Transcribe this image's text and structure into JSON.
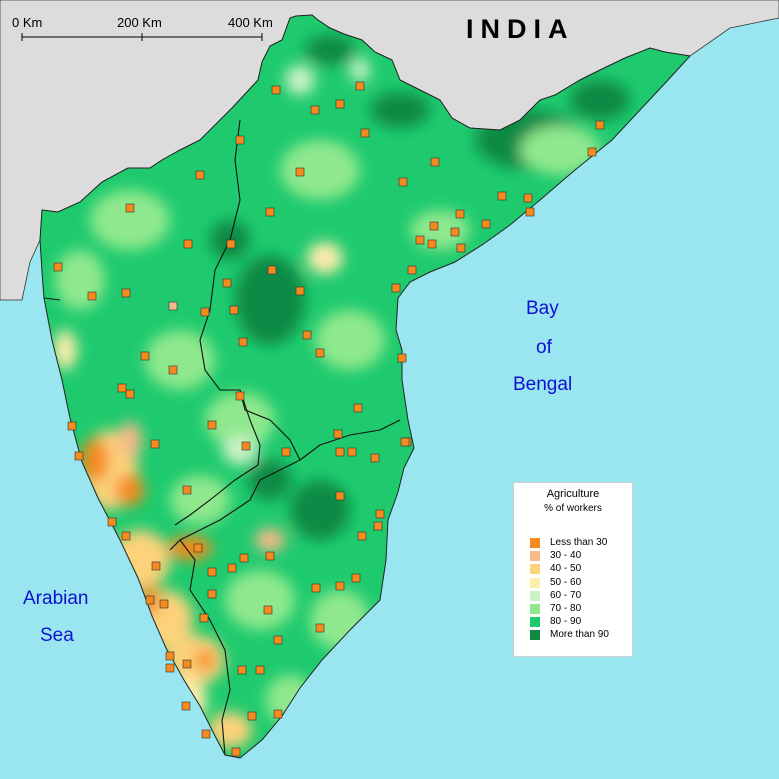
{
  "title": "INDIA",
  "scale": {
    "labels": [
      "0 Km",
      "200 Km",
      "400 Km"
    ]
  },
  "seas": {
    "bay": [
      "Bay",
      "of",
      "Bengal"
    ],
    "arabian": [
      "Arabian",
      "Sea"
    ]
  },
  "legend": {
    "title": "Agriculture",
    "subtitle": "% of workers",
    "items": [
      {
        "label": "Less than 30",
        "color": "#f58a1e"
      },
      {
        "label": "30 -  40",
        "color": "#f7b98a"
      },
      {
        "label": "40 - 50",
        "color": "#fcd27a"
      },
      {
        "label": "50 - 60",
        "color": "#fcedab"
      },
      {
        "label": "60 - 70",
        "color": "#c9f2c5"
      },
      {
        "label": "70 - 80",
        "color": "#8fe88d"
      },
      {
        "label": "80 - 90",
        "color": "#1fca6e"
      },
      {
        "label": "More than 90",
        "color": "#0e8a45"
      }
    ]
  },
  "colors": {
    "sea": "#99e6f0",
    "land_outside": "#dcdcdc",
    "marker": "#f58a1e",
    "marker_light": "#f7b98a"
  }
}
